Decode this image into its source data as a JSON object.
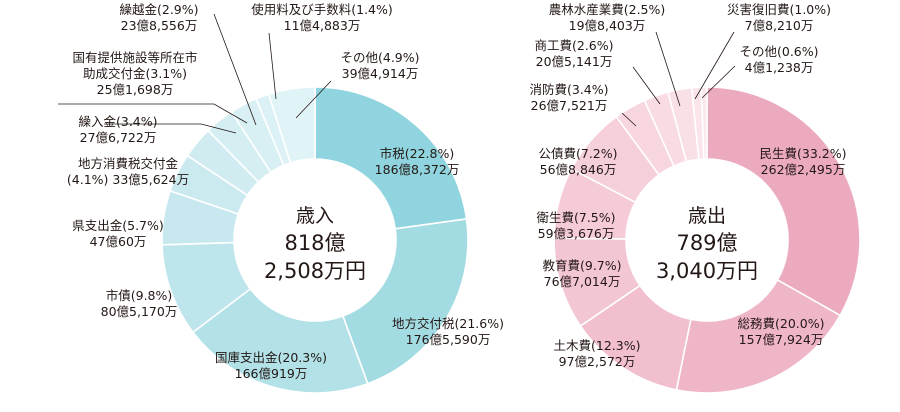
{
  "chart_data": [
    {
      "type": "pie",
      "center_label": [
        "歳入",
        "818億",
        "2,508万円"
      ],
      "categories": [
        "市税",
        "地方交付税",
        "国庫支出金",
        "市債",
        "県支出金",
        "地方消費税交付金",
        "繰入金",
        "国有提供施設等所在市助成交付金",
        "繰越金",
        "使用料及び手数料",
        "その他"
      ],
      "values": [
        22.8,
        21.6,
        20.3,
        9.8,
        5.7,
        4.1,
        3.4,
        3.1,
        2.9,
        1.4,
        4.9
      ],
      "colors": [
        "#8fd4de",
        "#a3dbe3",
        "#b3e1e8",
        "#bee5eb",
        "#c6e8ee",
        "#cbeaef",
        "#d0ecf1",
        "#d4eef2",
        "#d8eff3",
        "#dcf1f5",
        "#e0f3f6"
      ],
      "labels": [
        [
          "市税(22.8%)",
          "186億8,372万"
        ],
        [
          "地方交付税(21.6%)",
          "176億5,590万"
        ],
        [
          "国庫支出金(20.3%)",
          "166億919万"
        ],
        [
          "市債(9.8%)",
          "80億5,170万"
        ],
        [
          "県支出金(5.7%)",
          "47億60万"
        ],
        [
          "地方消費税交付金",
          "(4.1%) 33億5,624万"
        ],
        [
          "繰入金(3.4%)",
          "27億6,722万"
        ],
        [
          "国有提供施設等所在市",
          "助成交付金(3.1%)",
          "25億1,698万"
        ],
        [
          "繰越金(2.9%)",
          "23億8,556万"
        ],
        [
          "使用料及び手数料(1.4%)",
          "11億4,883万"
        ],
        [
          "その他(4.9%)",
          "39億4,914万"
        ]
      ]
    },
    {
      "type": "pie",
      "center_label": [
        "歳出",
        "789億",
        "3,040万円"
      ],
      "categories": [
        "民生費",
        "総務費",
        "土木費",
        "教育費",
        "衛生費",
        "公債費",
        "消防費",
        "商工費",
        "農林水産業費",
        "災害復旧費",
        "その他"
      ],
      "values": [
        33.2,
        20.0,
        12.3,
        9.7,
        7.5,
        7.2,
        3.4,
        2.6,
        2.5,
        1.0,
        0.6
      ],
      "colors": [
        "#ecaabe",
        "#efb6c7",
        "#f1bfce",
        "#f3c6d3",
        "#f4cbd7",
        "#f5d0da",
        "#f7d6df",
        "#f8dbe3",
        "#f9e0e7",
        "#fae5eb",
        "#fbe9ee"
      ],
      "labels": [
        [
          "民生費(33.2%)",
          "262億2,495万"
        ],
        [
          "総務費(20.0%)",
          "157億7,924万"
        ],
        [
          "土木費(12.3%)",
          "97億2,572万"
        ],
        [
          "教育費(9.7%)",
          "76億7,014万"
        ],
        [
          "衛生費(7.5%)",
          "59億3,676万"
        ],
        [
          "公債費(7.2%)",
          "56億8,846万"
        ],
        [
          "消防費(3.4%)",
          "26億7,521万"
        ],
        [
          "商工費(2.6%)",
          "20億5,141万"
        ],
        [
          "農林水産業費(2.5%)",
          "19億8,403万"
        ],
        [
          "災害復旧費(1.0%)",
          "7億8,210万"
        ],
        [
          "その他(0.6%)",
          "4億1,238万"
        ]
      ]
    }
  ]
}
